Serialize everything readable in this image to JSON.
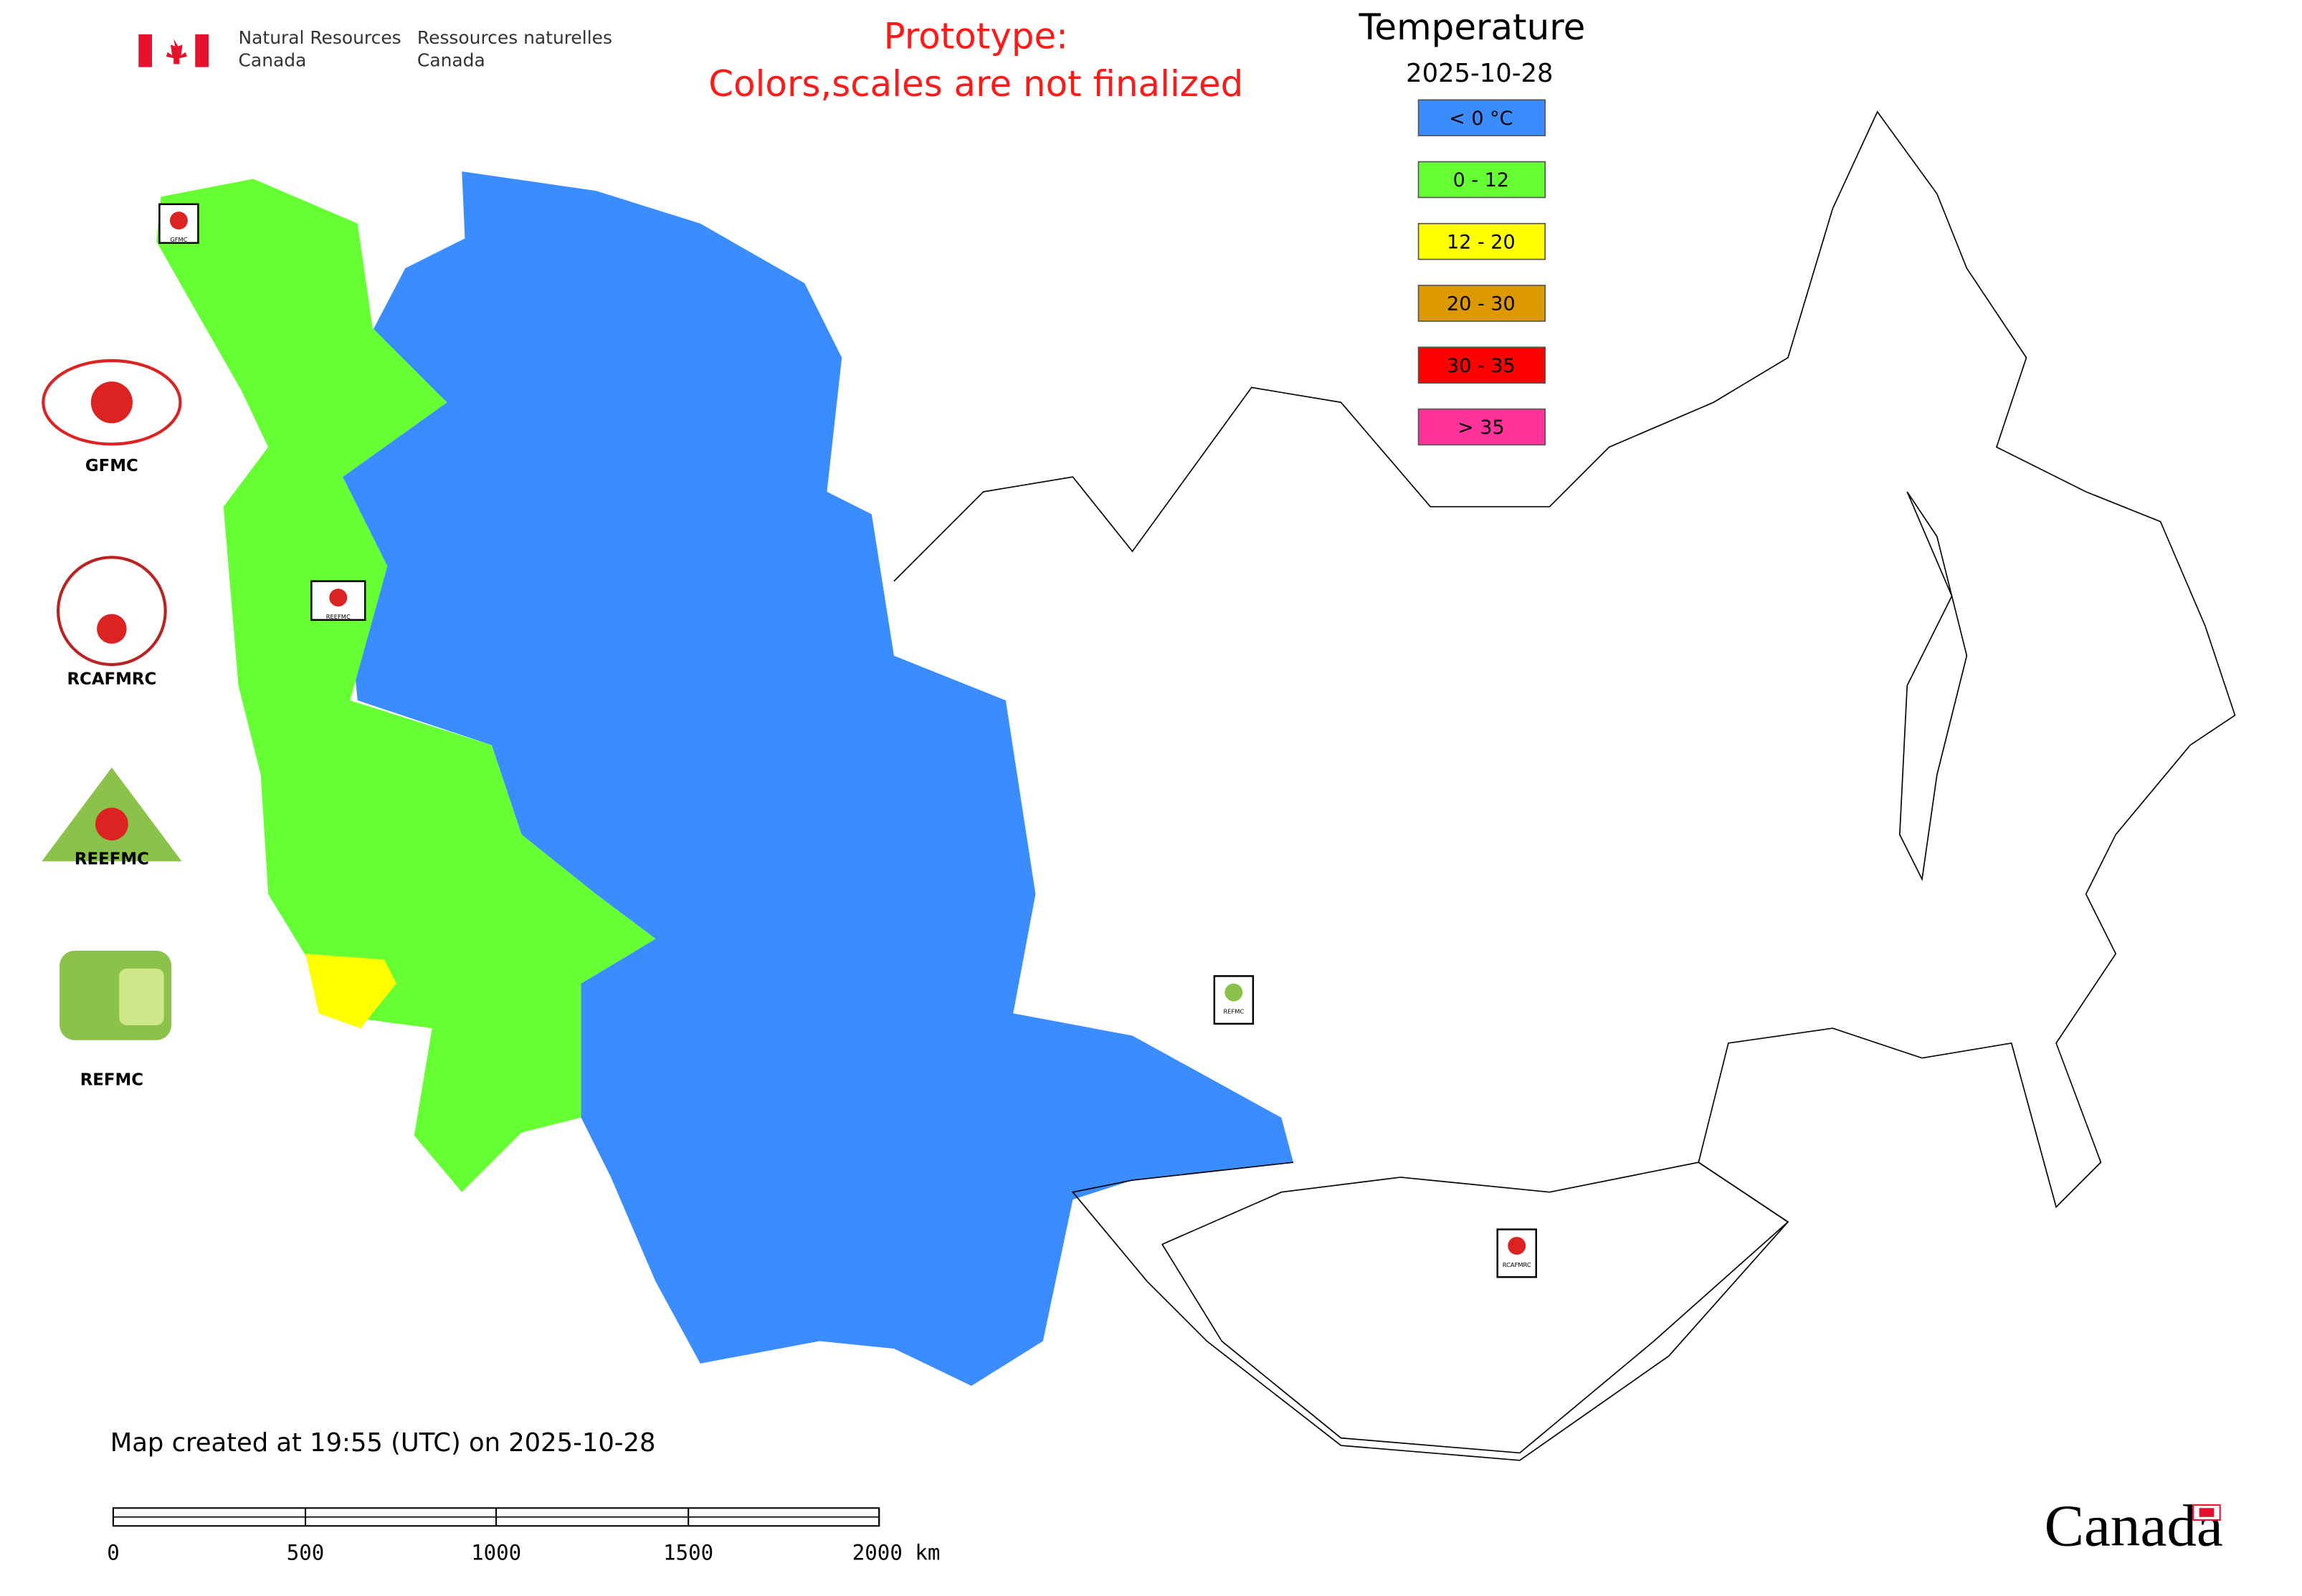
{
  "header": {
    "ministry_en": [
      "Natural Resources",
      "Canada"
    ],
    "ministry_fr": [
      "Ressources naturelles",
      "Canada"
    ]
  },
  "prototype_note": [
    "Prototype:",
    "Colors,scales are not finalized"
  ],
  "legend": {
    "title": "Temperature",
    "date": "2025-10-28",
    "items": [
      {
        "label": "< 0 °C",
        "color": "#3a8cff"
      },
      {
        "label": "0 - 12",
        "color": "#66ff33"
      },
      {
        "label": "12 - 20",
        "color": "#ffff00"
      },
      {
        "label": "20 - 30",
        "color": "#dd9900"
      },
      {
        "label": "30 - 35",
        "color": "#ff0000"
      },
      {
        "label": "> 35",
        "color": "#ff3399"
      }
    ]
  },
  "logos": [
    "GFMC",
    "RCAFMRC",
    "REEFMC",
    "REFMC"
  ],
  "map_markers": [
    "GFMC",
    "REEFMC",
    "REFMC",
    "RCAFMRC"
  ],
  "footer": {
    "created": "Map created at 19:55 (UTC) on 2025-10-28"
  },
  "scale_bar": {
    "labels": [
      "0",
      "500",
      "1000",
      "1500",
      "2000 km"
    ]
  },
  "wordmark": "Canada"
}
